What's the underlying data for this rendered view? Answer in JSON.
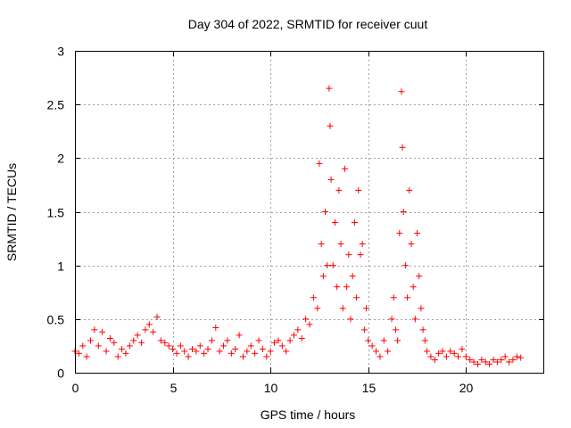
{
  "chart_data": {
    "type": "scatter",
    "title": "Day 304 of 2022, SRMTID for receiver cuut",
    "xlabel": "GPS time / hours",
    "ylabel": "SRMTID / TECUs",
    "xlim": [
      0,
      24
    ],
    "ylim": [
      0,
      3
    ],
    "xticks": [
      0,
      5,
      10,
      15,
      20
    ],
    "xtick_labels": [
      "0",
      "5",
      "10",
      "15",
      "20"
    ],
    "yticks": [
      0,
      0.5,
      1,
      1.5,
      2,
      2.5,
      3
    ],
    "ytick_labels": [
      "0",
      "0.5",
      "1",
      "1.5",
      "2",
      "2.5",
      "3"
    ],
    "grid": true,
    "marker": "+",
    "series": [
      {
        "name": "SRMTID",
        "color": "#ff0000",
        "x": [
          0.0,
          0.2,
          0.4,
          0.6,
          0.8,
          1.0,
          1.2,
          1.4,
          1.6,
          1.8,
          2.0,
          2.2,
          2.4,
          2.6,
          2.8,
          3.0,
          3.2,
          3.4,
          3.6,
          3.8,
          4.0,
          4.2,
          4.4,
          4.6,
          4.8,
          5.0,
          5.2,
          5.4,
          5.6,
          5.8,
          6.0,
          6.2,
          6.4,
          6.6,
          6.8,
          7.0,
          7.2,
          7.4,
          7.6,
          7.8,
          8.0,
          8.2,
          8.4,
          8.6,
          8.8,
          9.0,
          9.2,
          9.4,
          9.6,
          9.8,
          10.0,
          10.2,
          10.4,
          10.6,
          10.8,
          11.0,
          11.2,
          11.4,
          11.6,
          11.8,
          12.0,
          12.2,
          12.4,
          12.5,
          12.6,
          12.7,
          12.8,
          12.9,
          13.0,
          13.05,
          13.1,
          13.2,
          13.3,
          13.4,
          13.5,
          13.6,
          13.7,
          13.8,
          13.9,
          14.0,
          14.1,
          14.2,
          14.3,
          14.4,
          14.5,
          14.6,
          14.7,
          14.8,
          14.9,
          15.0,
          15.2,
          15.4,
          15.6,
          15.8,
          16.0,
          16.2,
          16.3,
          16.4,
          16.5,
          16.6,
          16.7,
          16.75,
          16.8,
          16.9,
          17.0,
          17.1,
          17.2,
          17.3,
          17.4,
          17.5,
          17.6,
          17.7,
          17.8,
          17.9,
          18.0,
          18.2,
          18.4,
          18.6,
          18.8,
          19.0,
          19.2,
          19.4,
          19.6,
          19.8,
          20.0,
          20.2,
          20.4,
          20.6,
          20.8,
          21.0,
          21.2,
          21.4,
          21.6,
          21.8,
          22.0,
          22.2,
          22.4,
          22.6,
          22.8
        ],
        "y": [
          0.2,
          0.18,
          0.25,
          0.15,
          0.3,
          0.4,
          0.25,
          0.38,
          0.2,
          0.32,
          0.28,
          0.15,
          0.22,
          0.18,
          0.25,
          0.3,
          0.35,
          0.28,
          0.4,
          0.45,
          0.38,
          0.52,
          0.3,
          0.28,
          0.25,
          0.22,
          0.18,
          0.25,
          0.2,
          0.15,
          0.22,
          0.2,
          0.25,
          0.18,
          0.22,
          0.3,
          0.42,
          0.2,
          0.25,
          0.3,
          0.18,
          0.22,
          0.35,
          0.15,
          0.2,
          0.25,
          0.18,
          0.3,
          0.22,
          0.15,
          0.2,
          0.28,
          0.3,
          0.25,
          0.2,
          0.3,
          0.35,
          0.4,
          0.32,
          0.5,
          0.45,
          0.7,
          0.6,
          1.95,
          1.2,
          0.9,
          1.5,
          1.0,
          2.65,
          2.3,
          1.8,
          1.0,
          1.4,
          0.8,
          1.7,
          1.2,
          0.6,
          1.9,
          0.8,
          1.1,
          0.5,
          0.9,
          1.4,
          0.7,
          1.7,
          1.1,
          1.2,
          0.4,
          0.6,
          0.3,
          0.25,
          0.2,
          0.15,
          0.3,
          0.2,
          0.5,
          0.7,
          0.4,
          0.3,
          1.3,
          2.62,
          2.1,
          1.5,
          1.0,
          0.7,
          1.7,
          1.2,
          0.8,
          0.5,
          1.3,
          0.9,
          0.6,
          0.4,
          0.3,
          0.2,
          0.15,
          0.12,
          0.18,
          0.2,
          0.15,
          0.2,
          0.18,
          0.15,
          0.22,
          0.15,
          0.12,
          0.1,
          0.08,
          0.12,
          0.1,
          0.08,
          0.12,
          0.1,
          0.12,
          0.15,
          0.1,
          0.12,
          0.15,
          0.14
        ]
      }
    ]
  }
}
